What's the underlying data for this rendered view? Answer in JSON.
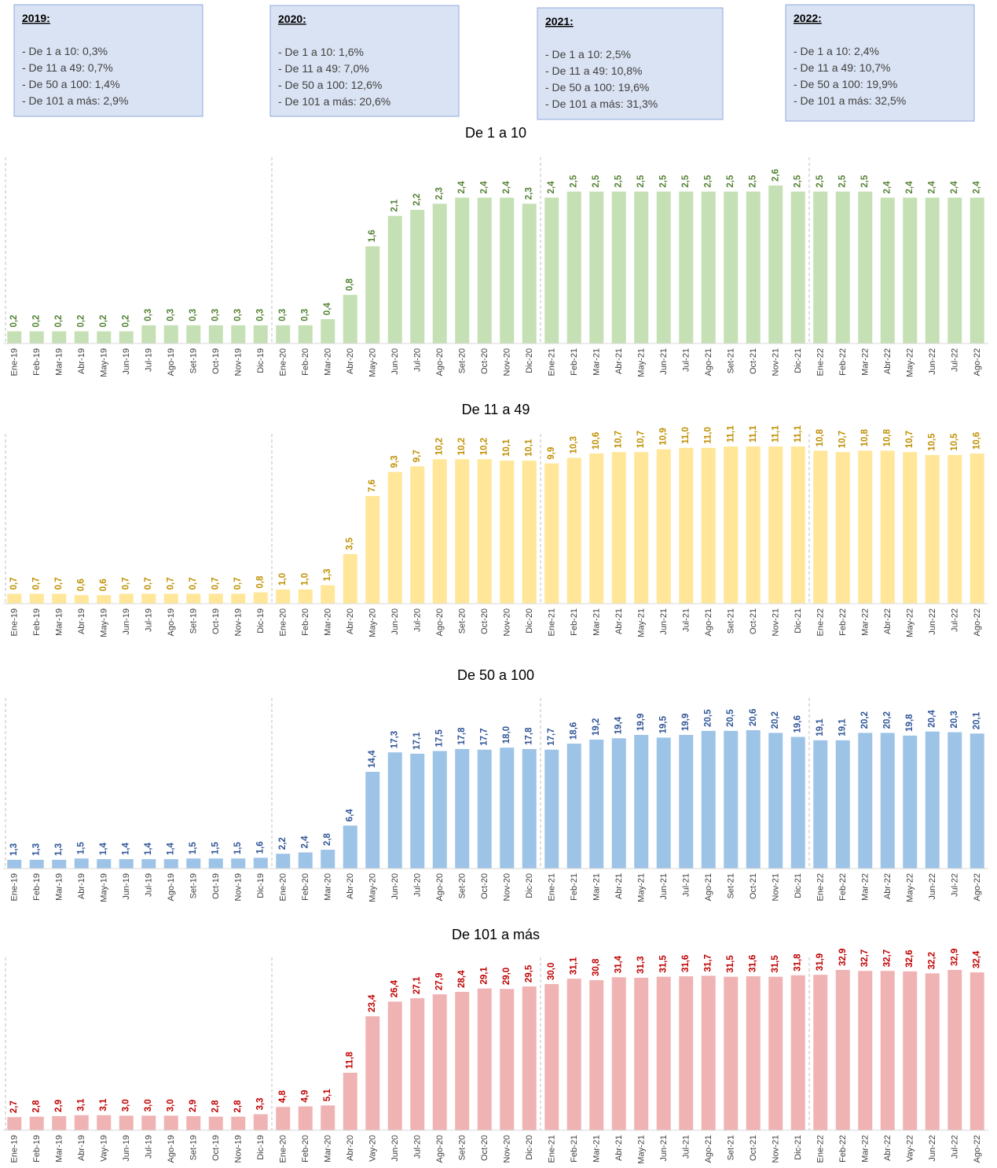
{
  "annotations": [
    {
      "title": "2019:",
      "lines": [
        "- De 1 a 10: 0,3%",
        "- De 11 a 49: 0,7%",
        "- De 50 a 100: 1,4%",
        "- De 101 a más: 2,9%"
      ]
    },
    {
      "title": "2020:",
      "lines": [
        "- De 1 a 10: 1,6%",
        "- De 11 a 49: 7,0%",
        "- De 50 a 100: 12,6%",
        "- De 101 a más: 20,6%"
      ]
    },
    {
      "title": "2021:",
      "lines": [
        "- De 1 a 10: 2,5%",
        "- De 11 a 49: 10,8%",
        "- De 50 a 100: 19,6%",
        "- De 101 a más: 31,3%"
      ]
    },
    {
      "title": "2022:",
      "lines": [
        "- De 1 a 10: 2,4%",
        "- De 11 a 49: 10,7%",
        "- De 50 a 100: 19,9%",
        "- De 101 a más: 32,5%"
      ]
    }
  ],
  "chart_data": [
    {
      "type": "bar",
      "title": "De 1 a 10",
      "color": "#c5e0b4",
      "label_color": "#548235",
      "categories": [
        "Ene-19",
        "Feb-19",
        "Mar-19",
        "Abr-19",
        "May-19",
        "Jun-19",
        "Jul-19",
        "Ago-19",
        "Set-19",
        "Oct-19",
        "Nov-19",
        "Dic-19",
        "Ene-20",
        "Feb-20",
        "Mar-20",
        "Abr-20",
        "May-20",
        "Jun-20",
        "Jul-20",
        "Ago-20",
        "Set-20",
        "Oct-20",
        "Nov-20",
        "Dic-20",
        "Ene-21",
        "Feb-21",
        "Mar-21",
        "Abr-21",
        "May-21",
        "Jun-21",
        "Jul-21",
        "Ago-21",
        "Set-21",
        "Oct-21",
        "Nov-21",
        "Dic-21",
        "Ene-22",
        "Feb-22",
        "Mar-22",
        "Abr-22",
        "May-22",
        "Jun-22",
        "Jul-22",
        "Ago-22"
      ],
      "values": [
        0.2,
        0.2,
        0.2,
        0.2,
        0.2,
        0.2,
        0.3,
        0.3,
        0.3,
        0.3,
        0.3,
        0.3,
        0.3,
        0.3,
        0.4,
        0.8,
        1.6,
        2.1,
        2.2,
        2.3,
        2.4,
        2.4,
        2.4,
        2.3,
        2.4,
        2.5,
        2.5,
        2.5,
        2.5,
        2.5,
        2.5,
        2.5,
        2.5,
        2.5,
        2.6,
        2.5,
        2.5,
        2.5,
        2.5,
        2.4,
        2.4,
        2.4,
        2.4,
        2.4
      ],
      "value_labels": [
        "0,2",
        "0,2",
        "0,2",
        "0,2",
        "0,2",
        "0,2",
        "0,3",
        "0,3",
        "0,3",
        "0,3",
        "0,3",
        "0,3",
        "0,3",
        "0,3",
        "0,4",
        "0,8",
        "1,6",
        "2,1",
        "2,2",
        "2,3",
        "2,4",
        "2,4",
        "2,4",
        "2,3",
        "2,4",
        "2,5",
        "2,5",
        "2,5",
        "2,5",
        "2,5",
        "2,5",
        "2,5",
        "2,5",
        "2,5",
        "2,6",
        "2,5",
        "2,5",
        "2,5",
        "2,5",
        "2,4",
        "2,4",
        "2,4",
        "2,4",
        "2,4"
      ]
    },
    {
      "type": "bar",
      "title": "De 11 a 49",
      "color": "#ffe699",
      "label_color": "#bf9000",
      "categories": [
        "Ene-19",
        "Feb-19",
        "Mar-19",
        "Abr-19",
        "May-19",
        "Jun-19",
        "Jul-19",
        "Ago-19",
        "Set-19",
        "Oct-19",
        "Nov-19",
        "Dic-19",
        "Ene-20",
        "Feb-20",
        "Mar-20",
        "Abr-20",
        "May-20",
        "Jun-20",
        "Jul-20",
        "Ago-20",
        "Set-20",
        "Oct-20",
        "Nov-20",
        "Dic-20",
        "Ene-21",
        "Feb-21",
        "Mar-21",
        "Abr-21",
        "May-21",
        "Jun-21",
        "Jul-21",
        "Ago-21",
        "Set-21",
        "Oct-21",
        "Nov-21",
        "Dic-21",
        "Ene-22",
        "Feb-22",
        "Mar-22",
        "Abr-22",
        "May-22",
        "Jun-22",
        "Jul-22",
        "Ago-22"
      ],
      "values": [
        0.7,
        0.7,
        0.7,
        0.6,
        0.6,
        0.7,
        0.7,
        0.7,
        0.7,
        0.7,
        0.7,
        0.8,
        1.0,
        1.0,
        1.3,
        3.5,
        7.6,
        9.3,
        9.7,
        10.2,
        10.2,
        10.2,
        10.1,
        10.1,
        9.9,
        10.3,
        10.6,
        10.7,
        10.7,
        10.9,
        11.0,
        11.0,
        11.1,
        11.1,
        11.1,
        11.1,
        10.8,
        10.7,
        10.8,
        10.8,
        10.7,
        10.5,
        10.5,
        10.6
      ],
      "value_labels": [
        "0,7",
        "0,7",
        "0,7",
        "0,6",
        "0,6",
        "0,7",
        "0,7",
        "0,7",
        "0,7",
        "0,7",
        "0,7",
        "0,8",
        "1,0",
        "1,0",
        "1,3",
        "3,5",
        "7,6",
        "9,3",
        "9,7",
        "10,2",
        "10,2",
        "10,2",
        "10,1",
        "10,1",
        "9,9",
        "10,3",
        "10,6",
        "10,7",
        "10,7",
        "10,9",
        "11,0",
        "11,0",
        "11,1",
        "11,1",
        "11,1",
        "11,1",
        "10,8",
        "10,7",
        "10,8",
        "10,8",
        "10,7",
        "10,5",
        "10,5",
        "10,6"
      ]
    },
    {
      "type": "bar",
      "title": "De 50 a 100",
      "color": "#9dc3e6",
      "label_color": "#2f5597",
      "categories": [
        "Ene-19",
        "Feb-19",
        "Mar-19",
        "Abr-19",
        "May-19",
        "Jun-19",
        "Jul-19",
        "Ago-19",
        "Set-19",
        "Oct-19",
        "Nov-19",
        "Dic-19",
        "Ene-20",
        "Feb-20",
        "Mar-20",
        "Abr-20",
        "May-20",
        "Jun-20",
        "Jul-20",
        "Ago-20",
        "Set-20",
        "Oct-20",
        "Nov-20",
        "Dic-20",
        "Ene-21",
        "Feb-21",
        "Mar-21",
        "Abr-21",
        "May-21",
        "Jun-21",
        "Jul-21",
        "Ago-21",
        "Set-21",
        "Oct-21",
        "Nov-21",
        "Dic-21",
        "Ene-22",
        "Feb-22",
        "Mar-22",
        "Abr-22",
        "May-22",
        "Jun-22",
        "Jul-22",
        "Ago-22"
      ],
      "values": [
        1.3,
        1.3,
        1.3,
        1.5,
        1.4,
        1.4,
        1.4,
        1.4,
        1.5,
        1.5,
        1.5,
        1.6,
        2.2,
        2.4,
        2.8,
        6.4,
        14.4,
        17.3,
        17.1,
        17.5,
        17.8,
        17.7,
        18.0,
        17.8,
        17.7,
        18.6,
        19.2,
        19.4,
        19.9,
        19.5,
        19.9,
        20.5,
        20.5,
        20.6,
        20.2,
        19.6,
        19.1,
        19.1,
        20.2,
        20.2,
        19.8,
        20.4,
        20.3,
        20.1
      ],
      "value_labels": [
        "1,3",
        "1,3",
        "1,3",
        "1,5",
        "1,4",
        "1,4",
        "1,4",
        "1,4",
        "1,5",
        "1,5",
        "1,5",
        "1,6",
        "2,2",
        "2,4",
        "2,8",
        "6,4",
        "14,4",
        "17,3",
        "17,1",
        "17,5",
        "17,8",
        "17,7",
        "18,0",
        "17,8",
        "17,7",
        "18,6",
        "19,2",
        "19,4",
        "19,9",
        "19,5",
        "19,9",
        "20,5",
        "20,5",
        "20,6",
        "20,2",
        "19,6",
        "19,1",
        "19,1",
        "20,2",
        "20,2",
        "19,8",
        "20,4",
        "20,3",
        "20,1"
      ]
    },
    {
      "type": "bar",
      "title": "De 101 a más",
      "color": "#f0b3b3",
      "label_color": "#c00000",
      "categories": [
        "Ene-19",
        "Feb-19",
        "Mar-19",
        "Abr-19",
        "Vay-19",
        "Jun-19",
        "Jul-19",
        "Ago-19",
        "Set-19",
        "Oct-19",
        "Nov-19",
        "Dic-19",
        "Ene-20",
        "Feb-20",
        "Mar-20",
        "Abr-20",
        "Vay-20",
        "Jun-20",
        "Jul-20",
        "Ago-20",
        "Set-20",
        "Oct-20",
        "Nov-20",
        "Dic-20",
        "Ene-21",
        "Feb-21",
        "Mar-21",
        "Abr-21",
        "May-21",
        "Jun-21",
        "Jul-21",
        "Ago-21",
        "Set-21",
        "Oct-21",
        "Nov-21",
        "Dic-21",
        "Ene-22",
        "Feb-22",
        "Mar-22",
        "Abr-22",
        "Vay-22",
        "Jun-22",
        "Jul-22",
        "Ago-22"
      ],
      "values": [
        2.7,
        2.8,
        2.9,
        3.1,
        3.1,
        3.0,
        3.0,
        3.0,
        2.9,
        2.8,
        2.8,
        3.3,
        4.8,
        4.9,
        5.1,
        11.8,
        23.4,
        26.4,
        27.1,
        27.9,
        28.4,
        29.1,
        29.0,
        29.5,
        30.0,
        31.1,
        30.8,
        31.4,
        31.3,
        31.5,
        31.6,
        31.7,
        31.5,
        31.6,
        31.5,
        31.8,
        31.9,
        32.9,
        32.7,
        32.7,
        32.6,
        32.2,
        32.9,
        32.4
      ],
      "value_labels": [
        "2,7",
        "2,8",
        "2,9",
        "3,1",
        "3,1",
        "3,0",
        "3,0",
        "3,0",
        "2,9",
        "2,8",
        "2,8",
        "3,3",
        "4,8",
        "4,9",
        "5,1",
        "11,8",
        "23,4",
        "26,4",
        "27,1",
        "27,9",
        "28,4",
        "29,1",
        "29,0",
        "29,5",
        "30,0",
        "31,1",
        "30,8",
        "31,4",
        "31,3",
        "31,5",
        "31,6",
        "31,7",
        "31,5",
        "31,6",
        "31,5",
        "31,8",
        "31,9",
        "32,9",
        "32,7",
        "32,7",
        "32,6",
        "32,2",
        "32,9",
        "32,4"
      ]
    }
  ]
}
